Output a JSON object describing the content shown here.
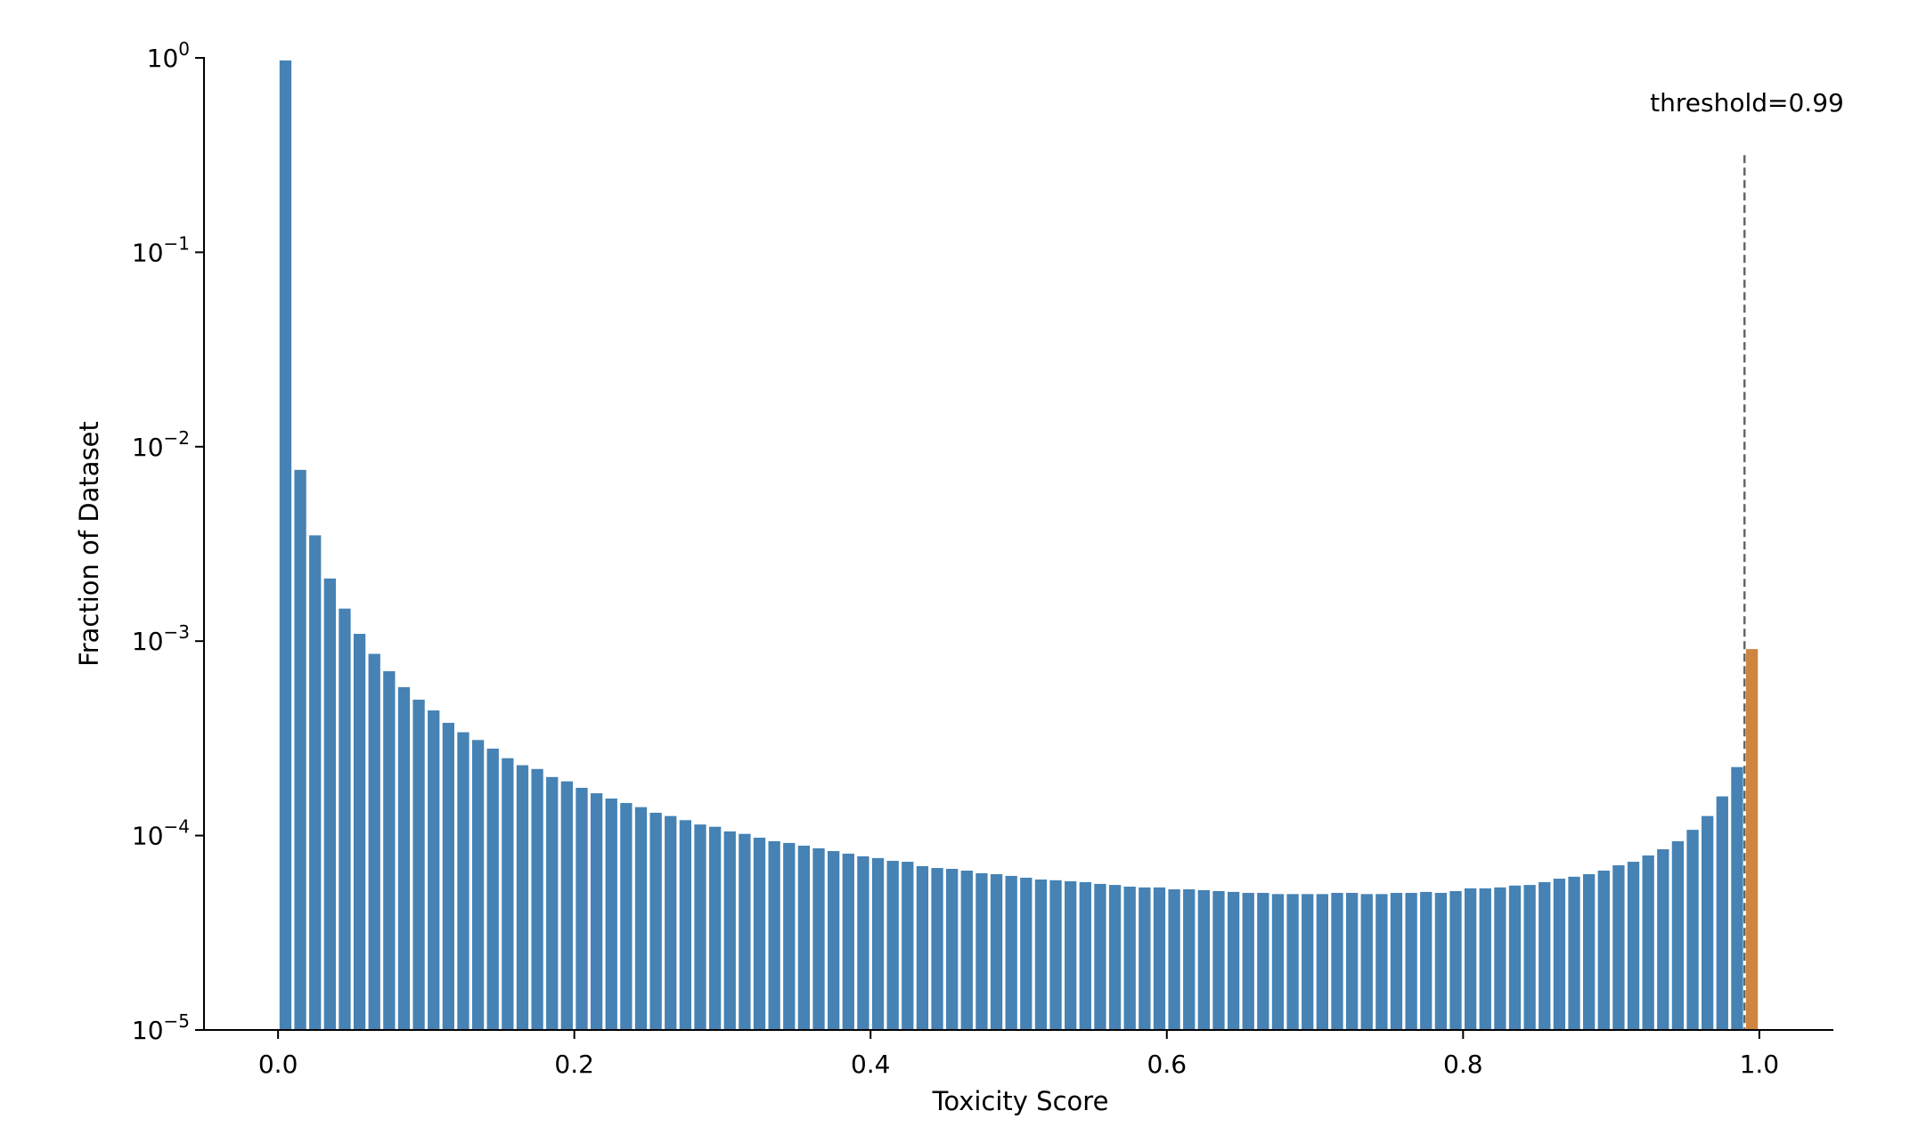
{
  "chart_data": {
    "type": "bar",
    "title": "",
    "xlabel": "Toxicity Score",
    "ylabel": "Fraction of Dataset",
    "xlim": [
      -0.05,
      1.05
    ],
    "ylim": [
      1e-05,
      1
    ],
    "yscale": "log",
    "grid": false,
    "bin_width": 0.01,
    "x_ticks": [
      "0.0",
      "0.2",
      "0.4",
      "0.6",
      "0.8",
      "1.0"
    ],
    "x_tick_values": [
      0,
      0.2,
      0.4,
      0.6,
      0.8,
      1.0
    ],
    "y_ticks": [
      {
        "base": "10",
        "exp": "0",
        "value": 1
      },
      {
        "base": "10",
        "exp": "−1",
        "value": 0.1
      },
      {
        "base": "10",
        "exp": "−2",
        "value": 0.01
      },
      {
        "base": "10",
        "exp": "−3",
        "value": 0.001
      },
      {
        "base": "10",
        "exp": "−4",
        "value": 0.0001
      },
      {
        "base": "10",
        "exp": "−5",
        "value": 1e-05
      }
    ],
    "bin_starts_note_free": true,
    "values": [
      0.97,
      0.0076,
      0.0035,
      0.0021,
      0.00147,
      0.00109,
      0.00086,
      0.0007,
      0.00058,
      0.0005,
      0.00044,
      0.00038,
      0.00034,
      0.00031,
      0.00028,
      0.00025,
      0.00023,
      0.00022,
      0.0002,
      0.00019,
      0.000176,
      0.000165,
      0.000155,
      0.000147,
      0.00014,
      0.000131,
      0.000126,
      0.00012,
      0.000114,
      0.000111,
      0.000105,
      0.000102,
      9.75e-05,
      9.35e-05,
      9.16e-05,
      8.87e-05,
      8.6e-05,
      8.32e-05,
      8.07e-05,
      7.82e-05,
      7.66e-05,
      7.41e-05,
      7.33e-05,
      6.96e-05,
      6.81e-05,
      6.74e-05,
      6.6e-05,
      6.4e-05,
      6.33e-05,
      6.2e-05,
      6.07e-05,
      5.94e-05,
      5.89e-05,
      5.82e-05,
      5.76e-05,
      5.64e-05,
      5.57e-05,
      5.46e-05,
      5.41e-05,
      5.41e-05,
      5.29e-05,
      5.29e-05,
      5.24e-05,
      5.18e-05,
      5.13e-05,
      5.07e-05,
      5.07e-05,
      5e-05,
      5e-05,
      5e-05,
      5e-05,
      5.07e-05,
      5.07e-05,
      5e-05,
      5e-05,
      5.07e-05,
      5.07e-05,
      5.13e-05,
      5.07e-05,
      5.18e-05,
      5.35e-05,
      5.35e-05,
      5.41e-05,
      5.53e-05,
      5.57e-05,
      5.76e-05,
      6e-05,
      6.14e-05,
      6.33e-05,
      6.6e-05,
      7.03e-05,
      7.33e-05,
      7.9e-05,
      8.5e-05,
      9.35e-05,
      0.000107,
      0.000126,
      0.000159,
      0.000225,
      0.00091
    ],
    "highlight_bins_from": 0.99,
    "threshold": {
      "value": 0.99,
      "label": "threshold=0.99",
      "line_top": 0.316
    },
    "colors": {
      "bar": "#4682b4",
      "highlight": "#cd853f",
      "threshold_line": "#666666",
      "axis": "#000000"
    }
  }
}
